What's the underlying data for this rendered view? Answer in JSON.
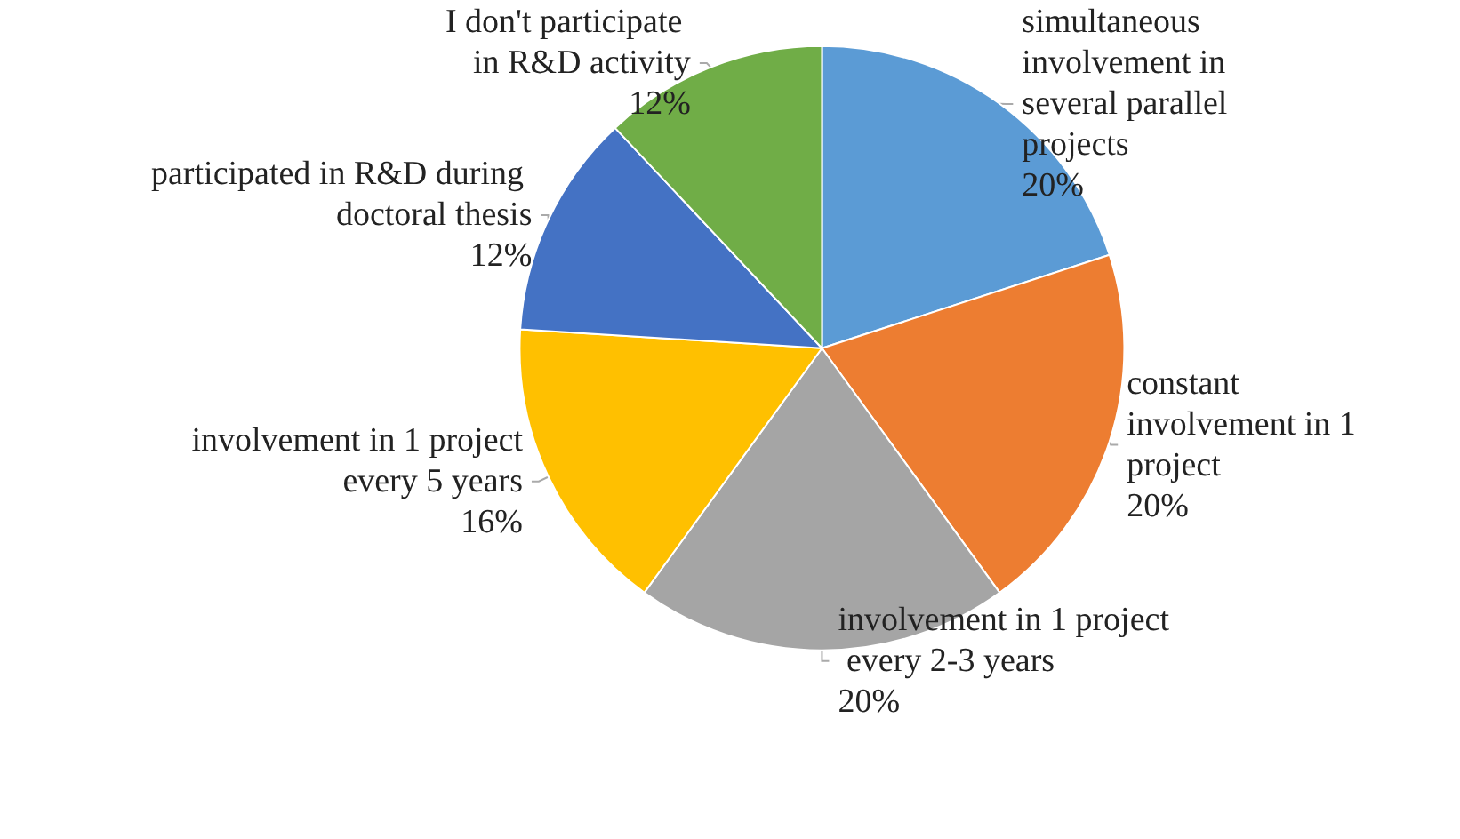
{
  "chart_data": {
    "type": "pie",
    "categories": [
      "simultaneous involvement in several parallel projects",
      "constant involvement in 1 project",
      "involvement in 1 project every 2-3 years",
      "involvement in 1 project every 5 years",
      "participated in R&D during doctoral thesis",
      "I don't participate in R&D activity"
    ],
    "values": [
      20,
      20,
      20,
      16,
      12,
      12
    ],
    "value_labels": [
      "20%",
      "20%",
      "20%",
      "16%",
      "12%",
      "12%"
    ],
    "colors": [
      "#5b9bd5",
      "#ed7d31",
      "#a5a5a5",
      "#ffc000",
      "#4472c4",
      "#70ad47"
    ],
    "legend": false
  }
}
